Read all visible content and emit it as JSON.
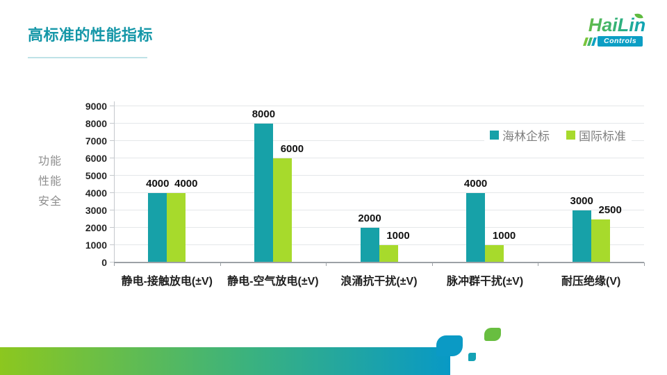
{
  "slide": {
    "title": "高标准的性能指标"
  },
  "logo": {
    "brand": "HaiLin",
    "sub": "Controls"
  },
  "side_labels": [
    "功能",
    "性能",
    "安全"
  ],
  "chart_data": {
    "type": "bar",
    "title": "",
    "categories": [
      "静电-接触放电(±V)",
      "静电-空气放电(±V)",
      "浪涌抗干扰(±V)",
      "脉冲群干扰(±V)",
      "耐压绝缘(V)"
    ],
    "series": [
      {
        "name": "海林企标",
        "color": "#17A1A8",
        "values": [
          4000,
          8000,
          2000,
          4000,
          3000
        ]
      },
      {
        "name": "国际标准",
        "color": "#A7DA2C",
        "values": [
          4000,
          6000,
          1000,
          1000,
          2500
        ]
      }
    ],
    "ylim": [
      0,
      9000
    ],
    "ytick_step": 1000,
    "grid": true,
    "legend_position": "top-right",
    "bar_value_labels": true
  },
  "colors": {
    "title": "#1597A8",
    "series_hailin": "#17A1A8",
    "series_international": "#A7DA2C",
    "footer_gradient_left": "#8CC71F",
    "footer_gradient_right": "#0899C5",
    "footer_accent_teal": "#0B9AC5",
    "footer_accent_green": "#68BE40"
  }
}
